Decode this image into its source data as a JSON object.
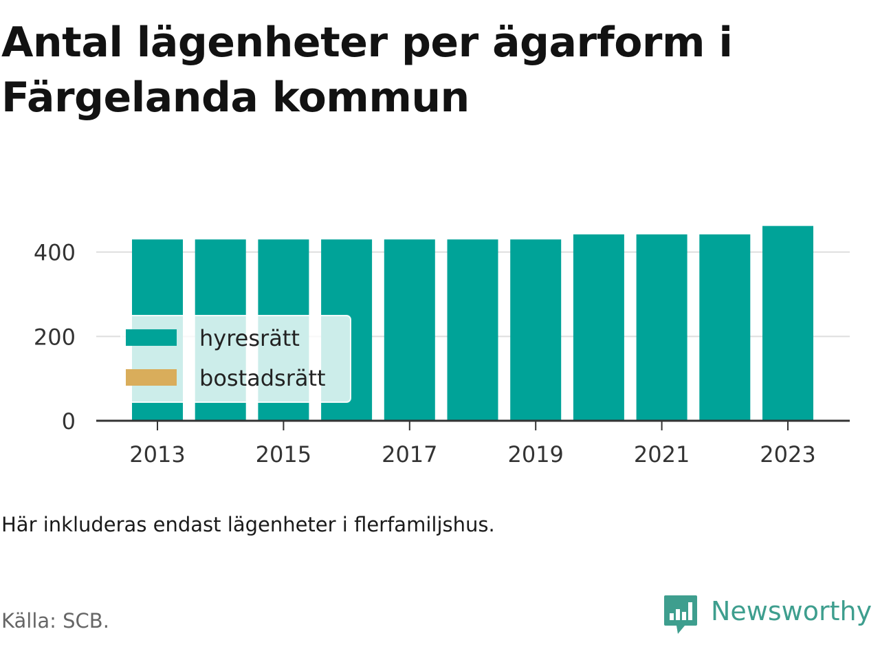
{
  "title": "Antal lägenheter per ägarform i Färgelanda kommun",
  "note": "Här inkluderas endast lägenheter i flerfamiljshus.",
  "source": "Källa: SCB.",
  "brand": {
    "name": "Newsworthy",
    "color": "#3e9e8e",
    "logo_icon": "bar-chart-speech-bubble-icon"
  },
  "colors": {
    "hyresratt": "#00a398",
    "bostadsratt": "#d9ad5b",
    "grid": "#dddddd",
    "axis": "#333333"
  },
  "chart_data": {
    "type": "bar",
    "stacked": true,
    "x": [
      2013,
      2014,
      2015,
      2016,
      2017,
      2018,
      2019,
      2020,
      2021,
      2022,
      2023
    ],
    "x_tick_labels": [
      "2013",
      "2015",
      "2017",
      "2019",
      "2021",
      "2023"
    ],
    "y_ticks": [
      0,
      200,
      400
    ],
    "y_tick_labels": [
      "0",
      "200",
      "400"
    ],
    "ylim": [
      0,
      490
    ],
    "grid": true,
    "legend_position": "bottom-left",
    "series": [
      {
        "name": "hyresrätt",
        "color": "#00a398",
        "values": [
          430,
          430,
          430,
          430,
          430,
          430,
          430,
          442,
          442,
          442,
          462
        ]
      },
      {
        "name": "bostadsrätt",
        "color": "#d9ad5b",
        "values": [
          0,
          0,
          0,
          0,
          0,
          0,
          0,
          0,
          0,
          0,
          0
        ]
      }
    ]
  }
}
